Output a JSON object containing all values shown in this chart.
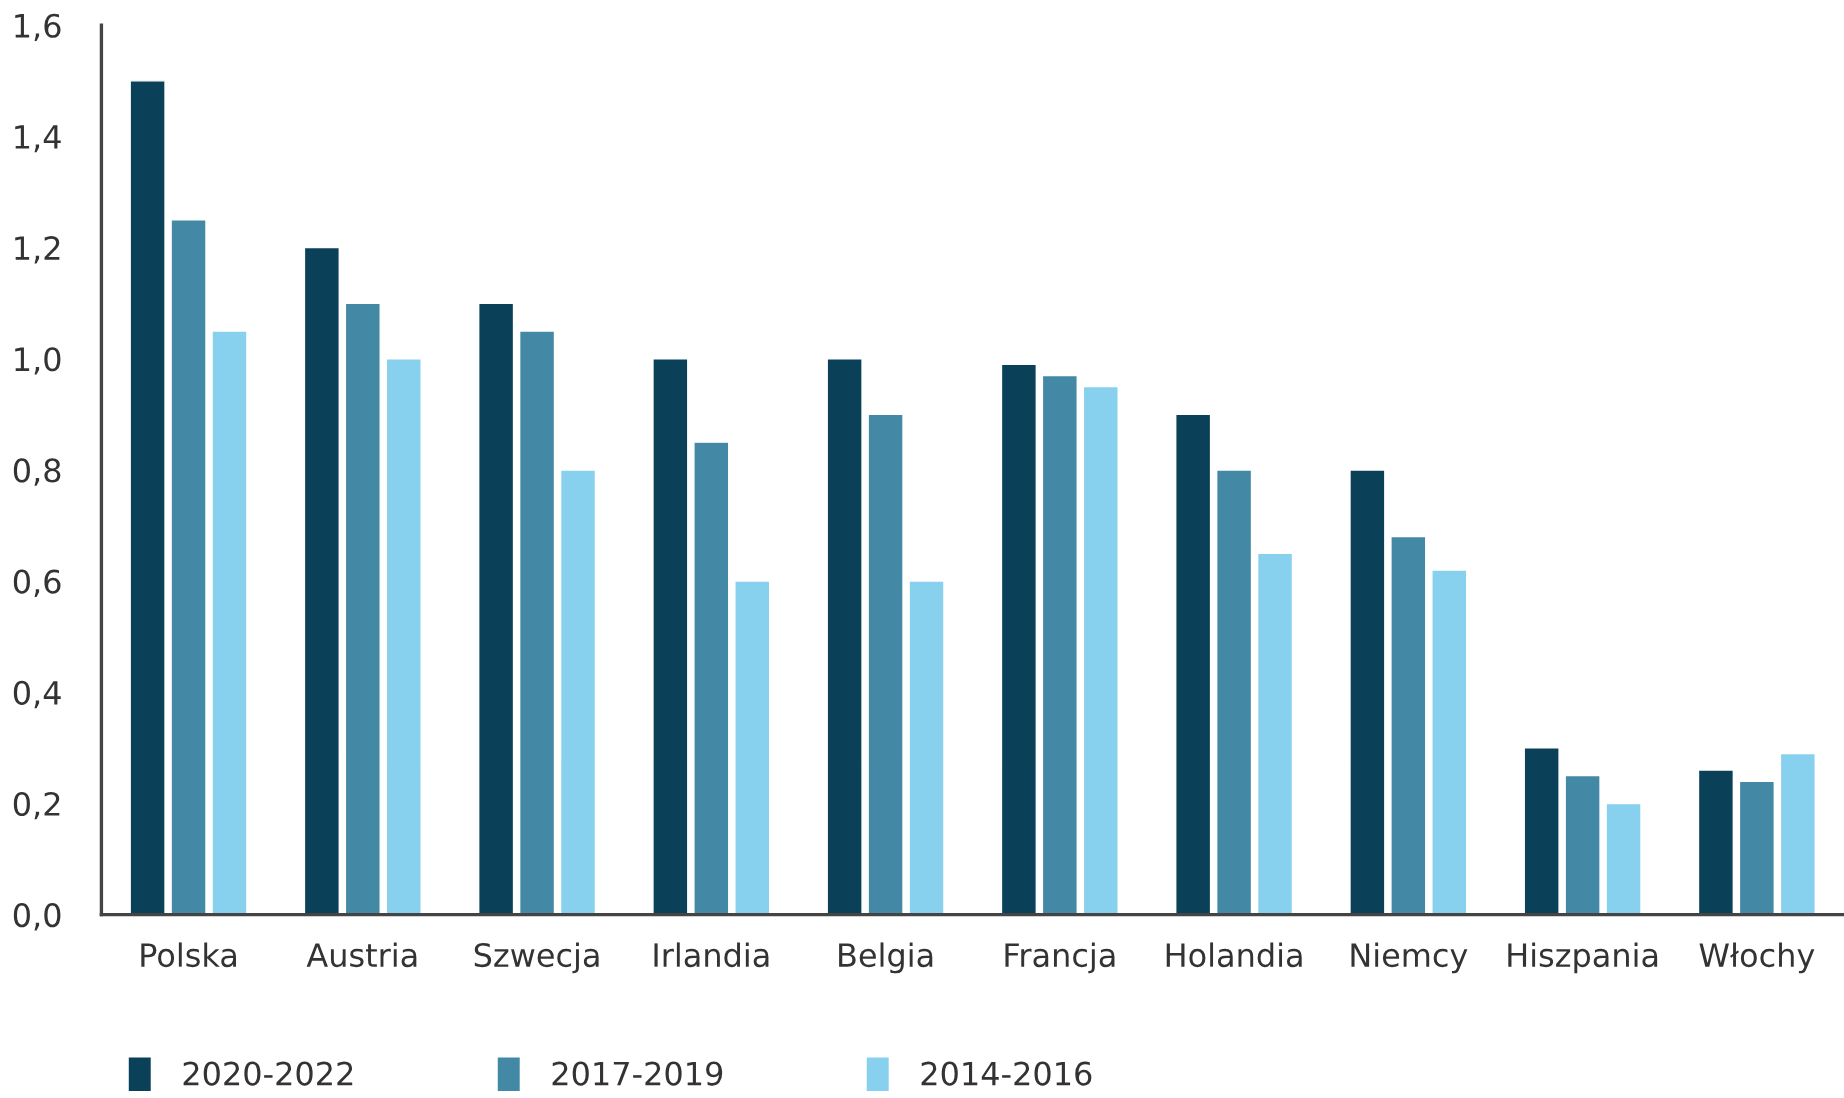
{
  "chart_data": {
    "type": "bar",
    "categories": [
      "Polska",
      "Austria",
      "Szwecja",
      "Irlandia",
      "Belgia",
      "Francja",
      "Holandia",
      "Niemcy",
      "Hiszpania",
      "Włochy"
    ],
    "series": [
      {
        "name": "2020-2022",
        "color": "#0b4059",
        "values": [
          1.5,
          1.2,
          1.1,
          1.0,
          1.0,
          0.99,
          0.9,
          0.8,
          0.3,
          0.26
        ]
      },
      {
        "name": "2017-2019",
        "color": "#4389a6",
        "values": [
          1.25,
          1.1,
          1.05,
          0.85,
          0.9,
          0.97,
          0.8,
          0.68,
          0.25,
          0.24
        ]
      },
      {
        "name": "2014-2016",
        "color": "#87d1ee",
        "values": [
          1.05,
          1.0,
          0.8,
          0.6,
          0.6,
          0.95,
          0.65,
          0.62,
          0.2,
          0.29
        ]
      }
    ],
    "ylim": [
      0,
      1.6
    ],
    "yticks": [
      {
        "value": 0,
        "label": "0,0"
      },
      {
        "value": 0.2,
        "label": "0,2"
      },
      {
        "value": 0.4,
        "label": "0,4"
      },
      {
        "value": 0.6,
        "label": "0,6"
      },
      {
        "value": 0.8,
        "label": "0,8"
      },
      {
        "value": 1.0,
        "label": "1,0"
      },
      {
        "value": 1.2,
        "label": "1,2"
      },
      {
        "value": 1.4,
        "label": "1,4"
      },
      {
        "value": 1.6,
        "label": "1,6"
      }
    ],
    "grid": false,
    "legend": "bottom left"
  }
}
